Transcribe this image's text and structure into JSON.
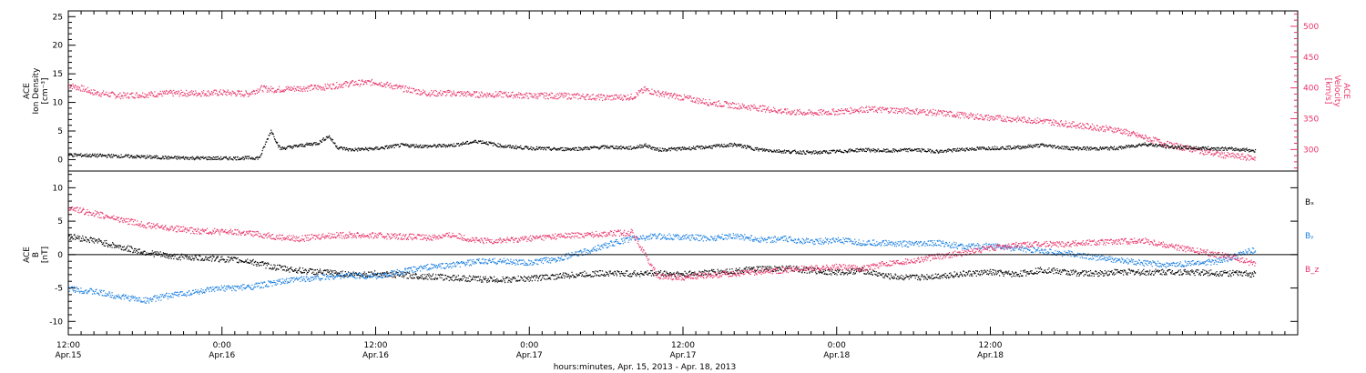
{
  "colors": {
    "density": "#000000",
    "velocity": "#e8356b",
    "bx": "#000000",
    "by": "#1a7fe0",
    "bz": "#e8356b",
    "axis": "#000000"
  },
  "chart_data": [
    {
      "type": "scatter",
      "panel": "top",
      "ylabel": [
        "ACE",
        "Ion Density",
        "[cm⁻³]"
      ],
      "ylabel2": [
        "ACE",
        "Velocity",
        "[km/s]"
      ],
      "ylim": [
        -2,
        26
      ],
      "ylim2": [
        265,
        525
      ],
      "yticks": [
        0,
        5,
        10,
        15,
        20,
        25
      ],
      "yticks2": [
        300,
        350,
        400,
        450,
        500
      ],
      "xlim_hours": [
        0,
        96
      ],
      "series": [
        {
          "key": "density",
          "axis": "left",
          "x": [
            0,
            4,
            8,
            12,
            14.9,
            15.3,
            15.8,
            16.5,
            18,
            19.5,
            20.3,
            21,
            22,
            24,
            26,
            28,
            30,
            32,
            34,
            36,
            38,
            40,
            42,
            44,
            45,
            46,
            48,
            50,
            52,
            54,
            56,
            58,
            60,
            62,
            64,
            66,
            68,
            70,
            72,
            74,
            76,
            78,
            80,
            82,
            84,
            86,
            88,
            90,
            92,
            92.7
          ],
          "y": [
            0.9,
            0.7,
            0.4,
            0.3,
            0.4,
            2.5,
            5.2,
            2.0,
            2.5,
            3.0,
            4.2,
            2.2,
            1.8,
            2.0,
            2.6,
            2.4,
            2.6,
            3.3,
            2.4,
            2.1,
            1.9,
            2.0,
            2.3,
            2.1,
            2.6,
            1.8,
            2.0,
            2.3,
            2.7,
            1.8,
            1.5,
            1.3,
            1.5,
            1.8,
            1.6,
            1.8,
            1.5,
            1.9,
            2.1,
            2.2,
            2.6,
            2.1,
            2.0,
            2.1,
            2.8,
            2.3,
            2.1,
            2.0,
            1.8,
            1.6
          ]
        },
        {
          "key": "velocity",
          "axis": "right",
          "x": [
            0,
            1,
            2,
            4,
            6,
            8,
            10,
            12,
            14,
            15,
            16,
            18,
            20,
            22,
            24,
            26,
            28,
            30,
            32,
            34,
            36,
            38,
            40,
            42,
            44,
            45,
            46,
            48,
            50,
            52,
            54,
            56,
            58,
            60,
            62,
            64,
            66,
            68,
            70,
            72,
            74,
            76,
            78,
            80,
            82,
            84,
            86,
            88,
            90,
            92,
            92.7
          ],
          "y": [
            405,
            400,
            393,
            388,
            390,
            392,
            392,
            393,
            391,
            400,
            398,
            400,
            402,
            408,
            410,
            400,
            392,
            392,
            390,
            390,
            388,
            388,
            387,
            385,
            386,
            398,
            392,
            385,
            377,
            372,
            368,
            362,
            360,
            362,
            366,
            365,
            363,
            360,
            356,
            352,
            350,
            347,
            342,
            337,
            332,
            320,
            308,
            300,
            292,
            288,
            287
          ]
        }
      ]
    },
    {
      "type": "scatter",
      "panel": "bottom",
      "ylabel": [
        "ACE",
        "B",
        "[nT]"
      ],
      "ylim": [
        -12,
        12.5
      ],
      "yticks": [
        -10,
        -5,
        0,
        5,
        10
      ],
      "xlim_hours": [
        0,
        96
      ],
      "zero_line": true,
      "series": [
        {
          "key": "bx",
          "name": "Bₓ",
          "x": [
            0,
            2,
            4,
            6,
            8,
            10,
            12,
            14,
            16,
            18,
            20,
            22,
            24,
            26,
            28,
            30,
            32,
            34,
            36,
            38,
            40,
            42,
            44,
            46,
            48,
            50,
            52,
            54,
            56,
            58,
            60,
            62,
            64,
            66,
            68,
            70,
            72,
            74,
            76,
            78,
            80,
            82,
            84,
            86,
            88,
            90,
            92,
            92.7
          ],
          "y": [
            2.8,
            2.2,
            1.2,
            0.4,
            -0.2,
            -0.4,
            -0.6,
            -0.9,
            -1.8,
            -2.3,
            -2.6,
            -2.9,
            -2.8,
            -3.0,
            -3.2,
            -3.4,
            -3.6,
            -3.7,
            -3.5,
            -3.2,
            -2.9,
            -2.7,
            -2.8,
            -2.7,
            -2.9,
            -2.6,
            -2.4,
            -2.1,
            -2.0,
            -2.3,
            -2.6,
            -2.3,
            -3.2,
            -3.4,
            -3.1,
            -2.8,
            -2.6,
            -2.9,
            -2.2,
            -2.6,
            -2.8,
            -2.5,
            -2.6,
            -2.5,
            -2.6,
            -2.7,
            -2.8,
            -2.9
          ]
        },
        {
          "key": "by",
          "name": "Bᵧ",
          "x": [
            0,
            2,
            4,
            6,
            8,
            10,
            12,
            14,
            16,
            18,
            20,
            22,
            24,
            26,
            28,
            30,
            32,
            34,
            36,
            38,
            40,
            42,
            44,
            46,
            48,
            50,
            52,
            54,
            56,
            58,
            60,
            62,
            64,
            66,
            68,
            70,
            72,
            74,
            76,
            78,
            80,
            82,
            84,
            86,
            88,
            90,
            92,
            92.7
          ],
          "y": [
            -5.0,
            -5.5,
            -6.2,
            -6.8,
            -6.0,
            -5.5,
            -5.0,
            -4.8,
            -4.2,
            -3.6,
            -3.3,
            -3.0,
            -3.2,
            -2.5,
            -1.8,
            -1.5,
            -1.0,
            -0.9,
            -1.2,
            -0.6,
            0.3,
            1.5,
            2.5,
            2.8,
            2.7,
            2.5,
            2.9,
            2.3,
            2.4,
            2.0,
            2.2,
            1.8,
            1.8,
            1.6,
            1.8,
            1.2,
            1.4,
            1.0,
            0.6,
            0.2,
            -0.3,
            -0.8,
            -1.2,
            -1.5,
            -1.2,
            -0.9,
            0.5,
            0.7
          ]
        },
        {
          "key": "bz",
          "name": "B_z",
          "x": [
            0,
            2,
            4,
            6,
            8,
            10,
            12,
            14,
            16,
            18,
            20,
            22,
            24,
            26,
            28,
            30,
            32,
            34,
            36,
            38,
            40,
            42,
            44,
            46,
            48,
            50,
            52,
            54,
            56,
            58,
            60,
            62,
            64,
            66,
            68,
            70,
            72,
            74,
            76,
            78,
            80,
            82,
            84,
            86,
            88,
            90,
            92,
            92.7
          ],
          "y": [
            7.0,
            6.2,
            5.3,
            4.5,
            4.0,
            3.6,
            3.5,
            3.3,
            2.8,
            2.4,
            2.9,
            3.0,
            2.9,
            2.8,
            2.6,
            3.0,
            2.1,
            2.2,
            2.5,
            2.8,
            3.0,
            3.2,
            3.4,
            -3.2,
            -3.3,
            -3.0,
            -2.8,
            -2.5,
            -2.2,
            -2.0,
            -1.8,
            -2.0,
            -1.2,
            -0.8,
            -0.2,
            0.4,
            1.0,
            1.5,
            1.6,
            1.7,
            1.9,
            2.0,
            2.2,
            1.4,
            0.6,
            0.0,
            -1.0,
            -1.2
          ]
        }
      ]
    }
  ],
  "x_axis": {
    "ticks": [
      {
        "hour": 0,
        "time": "12:00",
        "date": "Apr.15"
      },
      {
        "hour": 12,
        "time": "0:00",
        "date": "Apr.16"
      },
      {
        "hour": 24,
        "time": "12:00",
        "date": "Apr.16"
      },
      {
        "hour": 36,
        "time": "0:00",
        "date": "Apr.17"
      },
      {
        "hour": 48,
        "time": "12:00",
        "date": "Apr.17"
      },
      {
        "hour": 60,
        "time": "0:00",
        "date": "Apr.18"
      },
      {
        "hour": 72,
        "time": "12:00",
        "date": "Apr.18"
      }
    ],
    "title": "hours:minutes, Apr. 15, 2013 - Apr. 18, 2013"
  },
  "labels": {
    "top_left_line1": "ACE",
    "top_left_line2": "Ion Density",
    "top_left_line3": "[cm⁻³]",
    "top_right_line1": "ACE",
    "top_right_line2": "Velocity",
    "top_right_line3": "[km/s]",
    "bottom_left_line1": "ACE",
    "bottom_left_line2": "B",
    "bottom_left_line3": "[nT]",
    "bx": "Bₓ",
    "by": "Bᵧ",
    "bz": "B_z"
  }
}
